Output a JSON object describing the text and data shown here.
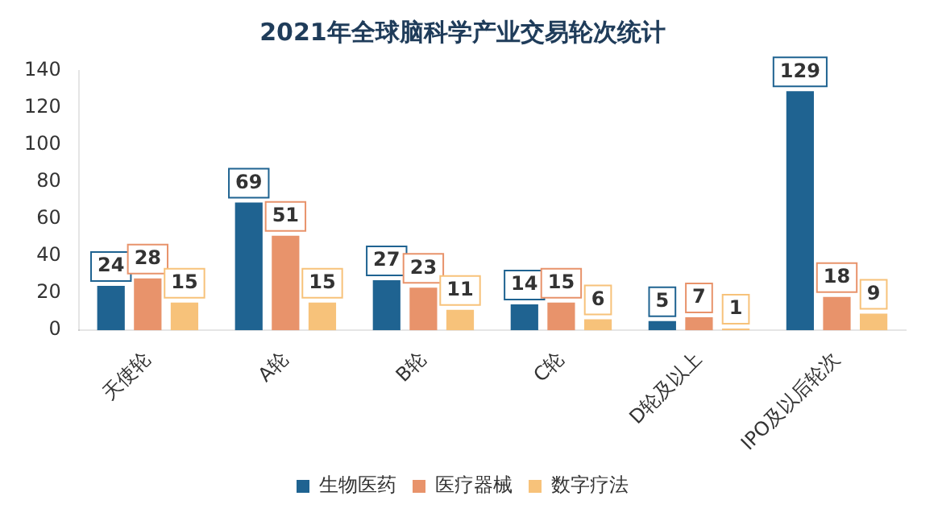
{
  "chart_data": {
    "type": "bar",
    "title": "2021年全球脑科学产业交易轮次统计",
    "categories": [
      "天使轮",
      "A轮",
      "B轮",
      "C轮",
      "D轮及以上",
      "IPO及以后轮次"
    ],
    "series": [
      {
        "name": "生物医药",
        "color": "#1f6391",
        "values": [
          24,
          69,
          27,
          14,
          5,
          129
        ]
      },
      {
        "name": "医疗器械",
        "color": "#e8936b",
        "values": [
          28,
          51,
          23,
          15,
          7,
          18
        ]
      },
      {
        "name": "数字疗法",
        "color": "#f7c27a",
        "values": [
          15,
          15,
          11,
          6,
          1,
          9
        ]
      }
    ],
    "ylim": [
      0,
      140
    ],
    "yticks": [
      0,
      20,
      40,
      60,
      80,
      100,
      120,
      140
    ],
    "grid": false,
    "legend": "bottom",
    "data_labels": true
  }
}
